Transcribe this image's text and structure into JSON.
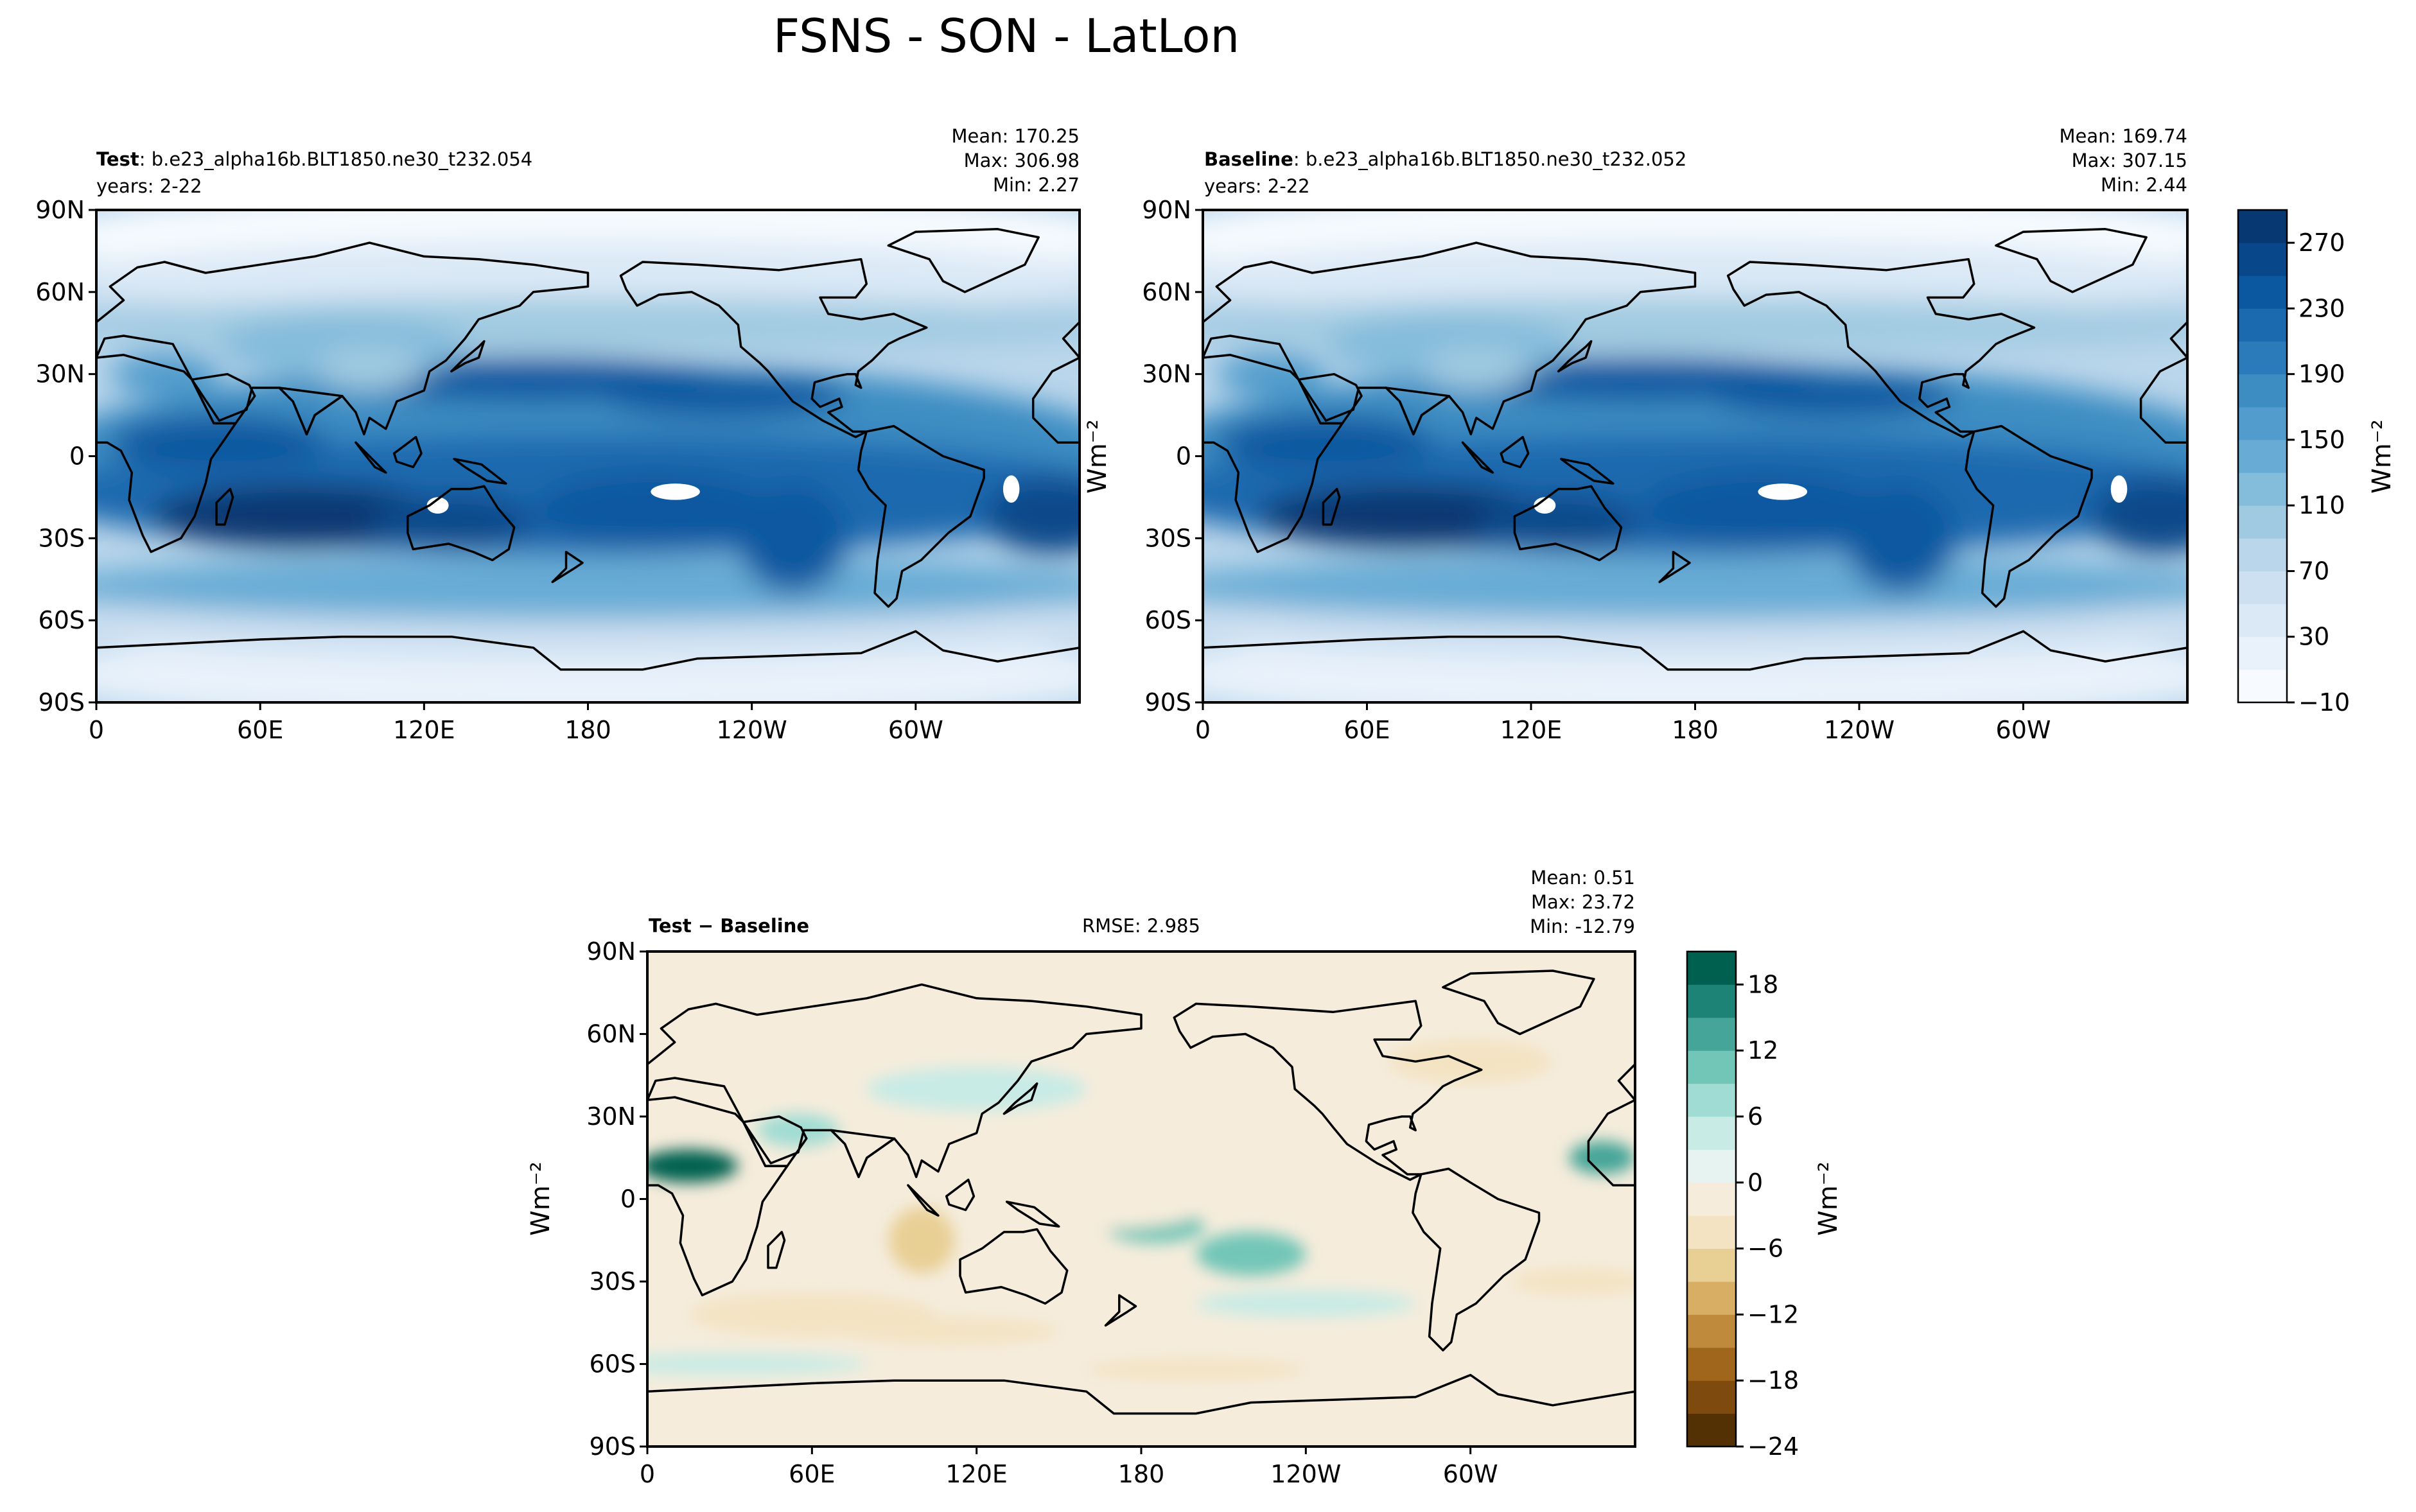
{
  "page_title": "FSNS - SON - LatLon",
  "chart_data": [
    {
      "id": "test",
      "type": "heatmap",
      "name_label": "Test",
      "name_sep": ": ",
      "case_label": "b.e23_alpha16b.BLT1850.ne30_t232.054",
      "years_label": "years: 2-22",
      "stats": [
        "Mean: 170.25",
        "Max: 306.98",
        "Min:  2.27"
      ],
      "stat_values": {
        "mean": 170.25,
        "max": 306.98,
        "min": 2.27
      },
      "units": "Wm⁻²",
      "x_ticks": [
        "0",
        "60E",
        "120E",
        "180",
        "120W",
        "60W"
      ],
      "y_ticks": [
        "90N",
        "60N",
        "30N",
        "0",
        "30S",
        "60S",
        "90S"
      ],
      "xlim": [
        0,
        360
      ],
      "ylim": [
        -90,
        90
      ],
      "projection": "PlateCarree, central_longitude=180"
    },
    {
      "id": "baseline",
      "type": "heatmap",
      "name_label": "Baseline",
      "name_sep": ": ",
      "case_label": "b.e23_alpha16b.BLT1850.ne30_t232.052",
      "years_label": "years: 2-22",
      "stats": [
        "Mean: 169.74",
        "Max: 307.15",
        "Min:  2.44"
      ],
      "stat_values": {
        "mean": 169.74,
        "max": 307.15,
        "min": 2.44
      },
      "units": "Wm⁻²",
      "x_ticks": [
        "0",
        "60E",
        "120E",
        "180",
        "120W",
        "60W"
      ],
      "y_ticks": [
        "90N",
        "60N",
        "30N",
        "0",
        "30S",
        "60S",
        "90S"
      ],
      "xlim": [
        0,
        360
      ],
      "ylim": [
        -90,
        90
      ],
      "colorbar": {
        "units": "Wm⁻²",
        "ticks": [
          "270",
          "230",
          "190",
          "150",
          "110",
          "70",
          "30",
          "−10"
        ],
        "levels": [
          -10,
          10,
          30,
          50,
          70,
          90,
          110,
          130,
          150,
          170,
          190,
          210,
          230,
          250,
          270,
          290
        ],
        "colors": [
          "#f7fbff",
          "#e9f2fb",
          "#dbe9f6",
          "#cde0f1",
          "#bad6eb",
          "#a0cae1",
          "#84bcdb",
          "#68acd5",
          "#519ccc",
          "#3d8dc3",
          "#2b7bba",
          "#1b69af",
          "#0c58a0",
          "#08488a",
          "#083872"
        ]
      }
    },
    {
      "id": "diff",
      "type": "heatmap",
      "name_label": "Test",
      "name_minus": " − ",
      "name_label2": "Baseline",
      "rmse_label": "RMSE: 2.985",
      "stats": [
        "Mean:  0.51",
        "Max: 23.72",
        "Min: -12.79"
      ],
      "stat_values": {
        "mean": 0.51,
        "max": 23.72,
        "min": -12.79,
        "rmse": 2.985
      },
      "units": "Wm⁻²",
      "x_ticks": [
        "0",
        "60E",
        "120E",
        "180",
        "120W",
        "60W"
      ],
      "y_ticks": [
        "90N",
        "60N",
        "30N",
        "0",
        "30S",
        "60S",
        "90S"
      ],
      "xlim": [
        0,
        360
      ],
      "ylim": [
        -90,
        90
      ],
      "colorbar": {
        "units": "Wm⁻²",
        "ticks": [
          "18",
          "12",
          "6",
          "0",
          "−6",
          "−12",
          "−18",
          "−24"
        ],
        "levels": [
          -24,
          -21,
          -18,
          -15,
          -12,
          -9,
          -6,
          -3,
          0,
          3,
          6,
          9,
          12,
          15,
          18,
          21
        ],
        "colors": [
          "#543005",
          "#7e4a0d",
          "#a0661c",
          "#bf8a3c",
          "#d7ae63",
          "#e8cf94",
          "#f3e3c2",
          "#f5ecdc",
          "#e6f3f1",
          "#c8ebe5",
          "#a0dcd3",
          "#72c6b8",
          "#44a598",
          "#1e8377",
          "#00604f"
        ]
      }
    }
  ]
}
